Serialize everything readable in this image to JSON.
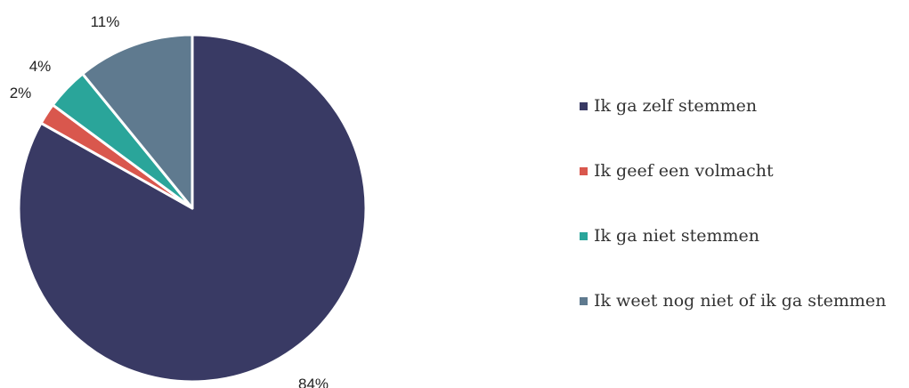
{
  "chart_data": {
    "type": "pie",
    "title": "",
    "start_angle_deg": 0,
    "direction": "clockwise",
    "legend_position": "right",
    "slices": [
      {
        "label": "Ik ga zelf stemmen",
        "value": 84,
        "value_label": "84%",
        "color": "#393a64"
      },
      {
        "label": "Ik geef een volmacht",
        "value": 2,
        "value_label": "2%",
        "color": "#d9574d"
      },
      {
        "label": "Ik ga niet stemmen",
        "value": 4,
        "value_label": "4%",
        "color": "#2aa59a"
      },
      {
        "label": "Ik weet nog niet of ik ga stemmen",
        "value": 11,
        "value_label": "11%",
        "color": "#5f7a8f"
      }
    ]
  }
}
